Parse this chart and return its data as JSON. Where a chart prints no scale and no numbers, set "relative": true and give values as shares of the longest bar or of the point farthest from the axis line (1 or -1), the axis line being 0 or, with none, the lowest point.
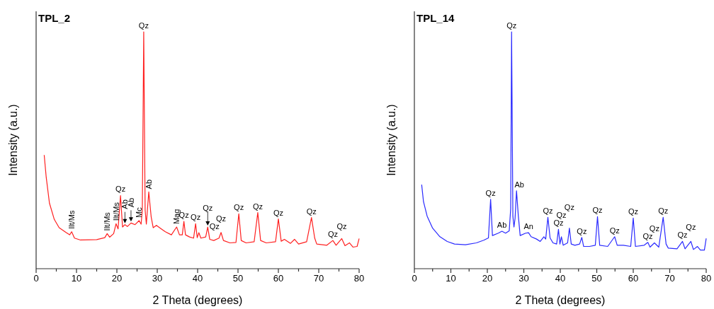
{
  "chart_data": [
    {
      "type": "line",
      "relative": true,
      "title": "TPL_2",
      "xlabel": "2 Theta (degrees)",
      "ylabel": "Intensity (a.u.)",
      "xlim": [
        0,
        80
      ],
      "xticks": [
        0,
        {
          "value": 5,
          "label": null
        },
        10,
        {
          "value": 15,
          "label": null
        },
        20,
        {
          "value": 25,
          "label": null
        },
        30,
        {
          "value": 35,
          "label": null
        },
        40,
        {
          "value": 45,
          "label": null
        },
        50,
        {
          "value": 55,
          "label": null
        },
        60,
        {
          "value": 65,
          "label": null
        },
        70,
        {
          "value": 75,
          "label": null
        },
        80
      ],
      "series": [
        {
          "color": "#ff2020",
          "x": [
            2,
            2.5,
            3.3,
            4.5,
            5.7,
            7.4,
            8.3,
            8.8,
            9.5,
            11,
            15,
            17,
            17.6,
            18.2,
            19.2,
            19.8,
            20.3,
            20.9,
            21.4,
            22,
            22.6,
            23.5,
            24.5,
            25.5,
            26,
            26.3,
            26.65,
            27,
            27.3,
            27.9,
            28.5,
            29,
            29.8,
            31,
            32,
            33.5,
            34.8,
            35.5,
            36.2,
            36.6,
            37,
            38,
            39,
            39.5,
            39.9,
            40.3,
            40.8,
            42,
            42.5,
            43,
            44,
            45.3,
            45.8,
            46.4,
            48,
            49.5,
            50.2,
            50.8,
            52,
            54,
            54.9,
            55.6,
            57,
            59.3,
            60,
            60.7,
            61.5,
            63,
            64,
            65,
            67,
            68.2,
            69,
            69.5,
            72,
            73.5,
            74.3,
            75.7,
            76.5,
            77.6,
            78.5,
            79.5,
            80
          ],
          "values": [
            0.48,
            0.386,
            0.277,
            0.208,
            0.173,
            0.153,
            0.143,
            0.156,
            0.129,
            0.121,
            0.123,
            0.131,
            0.148,
            0.133,
            0.148,
            0.19,
            0.168,
            0.309,
            0.176,
            0.186,
            0.178,
            0.193,
            0.186,
            0.203,
            0.188,
            0.247,
            1.0,
            0.247,
            0.188,
            0.324,
            0.218,
            0.173,
            0.183,
            0.168,
            0.156,
            0.143,
            0.176,
            0.143,
            0.143,
            0.2,
            0.143,
            0.134,
            0.129,
            0.19,
            0.131,
            0.152,
            0.129,
            0.134,
            0.176,
            0.124,
            0.119,
            0.129,
            0.153,
            0.119,
            0.109,
            0.111,
            0.232,
            0.119,
            0.109,
            0.114,
            0.237,
            0.119,
            0.109,
            0.114,
            0.21,
            0.116,
            0.124,
            0.107,
            0.124,
            0.104,
            0.114,
            0.216,
            0.129,
            0.104,
            0.099,
            0.119,
            0.099,
            0.127,
            0.097,
            0.109,
            0.091,
            0.094,
            0.127
          ]
        }
      ],
      "annotations": [
        {
          "text": "Qz",
          "x": 26.65,
          "y": 1.0
        },
        {
          "text": "Ilt/Ms",
          "x": 8.8,
          "y": 0.156
        },
        {
          "text": "Ilt/Ms",
          "x": 17.6,
          "y": 0.148
        },
        {
          "text": "Ilt/Ms",
          "x": 19.8,
          "y": 0.19
        },
        {
          "text": "Qz",
          "x": 20.9,
          "y": 0.309
        },
        {
          "text": "Ab",
          "x": 22,
          "y": 0.186
        },
        {
          "text": "Ab",
          "x": 23.5,
          "y": 0.193
        },
        {
          "text": "Mc",
          "x": 25.5,
          "y": 0.203
        },
        {
          "text": "Ab",
          "x": 27.9,
          "y": 0.324
        },
        {
          "text": "Mag",
          "x": 34.8,
          "y": 0.176
        },
        {
          "text": "Qz",
          "x": 36.6,
          "y": 0.2
        },
        {
          "text": "Qz",
          "x": 39.5,
          "y": 0.19
        },
        {
          "text": "Qz",
          "x": 40.3,
          "y": 0.152
        },
        {
          "text": "Qz",
          "x": 42.5,
          "y": 0.176
        },
        {
          "text": "Qz",
          "x": 45.8,
          "y": 0.153
        },
        {
          "text": "Qz",
          "x": 50.2,
          "y": 0.232
        },
        {
          "text": "Qz",
          "x": 54.9,
          "y": 0.237
        },
        {
          "text": "Qz",
          "x": 60,
          "y": 0.21
        },
        {
          "text": "Qz",
          "x": 68.2,
          "y": 0.216
        },
        {
          "text": "Qz",
          "x": 73.5,
          "y": 0.119
        },
        {
          "text": "Qz",
          "x": 75.7,
          "y": 0.127
        }
      ]
    },
    {
      "type": "line",
      "relative": true,
      "title": "TPL_14",
      "xlabel": "2 Theta (degrees)",
      "ylabel": "Intensity (a.u.)",
      "xlim": [
        0,
        80
      ],
      "xticks": [
        0,
        {
          "value": 5,
          "label": null
        },
        10,
        {
          "value": 15,
          "label": null
        },
        20,
        {
          "value": 25,
          "label": null
        },
        30,
        {
          "value": 35,
          "label": null
        },
        40,
        {
          "value": 45,
          "label": null
        },
        50,
        {
          "value": 55,
          "label": null
        },
        60,
        {
          "value": 65,
          "label": null
        },
        70,
        {
          "value": 75,
          "label": null
        },
        80
      ],
      "series": [
        {
          "color": "#2a2aff",
          "x": [
            2,
            2.5,
            3.5,
            5,
            7,
            9,
            11,
            14,
            17,
            19,
            20.3,
            20.9,
            21.4,
            23,
            24,
            25,
            26,
            26.4,
            26.65,
            27,
            27.3,
            27.6,
            28,
            28.5,
            29,
            30.5,
            31.3,
            32,
            33.5,
            34.5,
            35.5,
            36,
            36.6,
            37.2,
            38,
            39,
            39.5,
            39.9,
            40.3,
            40.8,
            42,
            42.5,
            43,
            44,
            45.3,
            45.9,
            46.4,
            48,
            49.6,
            50.2,
            50.8,
            53,
            54.9,
            55.6,
            57.3,
            59.3,
            60,
            60.6,
            63,
            64,
            64.6,
            65.8,
            67,
            68.2,
            69,
            69.6,
            72,
            73.5,
            74.2,
            75.8,
            76.5,
            77.6,
            78.4,
            79.5,
            80
          ],
          "values": [
            0.355,
            0.283,
            0.222,
            0.171,
            0.135,
            0.115,
            0.104,
            0.101,
            0.109,
            0.12,
            0.13,
            0.293,
            0.14,
            0.15,
            0.158,
            0.15,
            0.16,
            0.252,
            1.0,
            0.222,
            0.176,
            0.212,
            0.329,
            0.222,
            0.14,
            0.15,
            0.152,
            0.135,
            0.125,
            0.115,
            0.135,
            0.125,
            0.217,
            0.13,
            0.109,
            0.104,
            0.166,
            0.104,
            0.135,
            0.099,
            0.109,
            0.171,
            0.104,
            0.099,
            0.104,
            0.132,
            0.094,
            0.094,
            0.099,
            0.22,
            0.099,
            0.094,
            0.135,
            0.099,
            0.099,
            0.094,
            0.214,
            0.094,
            0.099,
            0.111,
            0.091,
            0.109,
            0.091,
            0.217,
            0.104,
            0.087,
            0.084,
            0.115,
            0.084,
            0.115,
            0.081,
            0.094,
            0.079,
            0.079,
            0.128
          ]
        }
      ],
      "annotations": [
        {
          "text": "Qz",
          "x": 26.65,
          "y": 1.0
        },
        {
          "text": "Qz",
          "x": 20.9,
          "y": 0.293
        },
        {
          "text": "Ab",
          "x": 24,
          "y": 0.158
        },
        {
          "text": "Ab",
          "x": 28,
          "y": 0.329
        },
        {
          "text": "An",
          "x": 31.3,
          "y": 0.152
        },
        {
          "text": "Qz",
          "x": 36.6,
          "y": 0.217
        },
        {
          "text": "Qz",
          "x": 39.5,
          "y": 0.166
        },
        {
          "text": "Qz",
          "x": 40.3,
          "y": 0.135
        },
        {
          "text": "Qz",
          "x": 42.5,
          "y": 0.171
        },
        {
          "text": "Qz",
          "x": 45.9,
          "y": 0.132
        },
        {
          "text": "Qz",
          "x": 50.2,
          "y": 0.22
        },
        {
          "text": "Qz",
          "x": 54.9,
          "y": 0.135
        },
        {
          "text": "Qz",
          "x": 60,
          "y": 0.214
        },
        {
          "text": "Qz",
          "x": 64,
          "y": 0.111
        },
        {
          "text": "Qz",
          "x": 65.8,
          "y": 0.109
        },
        {
          "text": "Qz",
          "x": 68.2,
          "y": 0.217
        },
        {
          "text": "Qz",
          "x": 73.5,
          "y": 0.115
        },
        {
          "text": "Qz",
          "x": 75.8,
          "y": 0.115
        }
      ]
    }
  ]
}
